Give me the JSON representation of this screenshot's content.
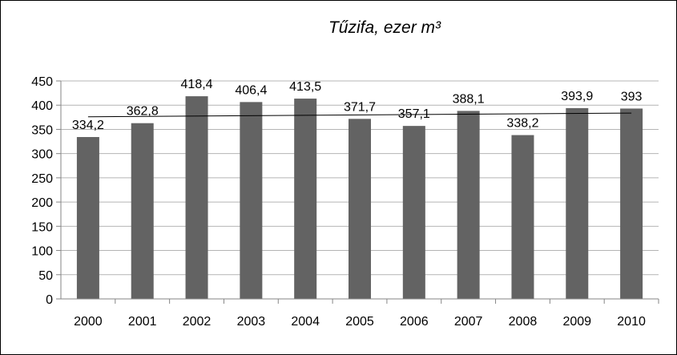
{
  "chart_data": {
    "type": "bar",
    "title": "Tűzifa, ezer m³",
    "xlabel": "",
    "ylabel": "",
    "categories": [
      "2000",
      "2001",
      "2002",
      "2003",
      "2004",
      "2005",
      "2006",
      "2007",
      "2008",
      "2009",
      "2010"
    ],
    "values": [
      334.2,
      362.8,
      418.4,
      406.4,
      413.5,
      371.7,
      357.1,
      388.1,
      338.2,
      393.9,
      393
    ],
    "value_labels": [
      "334,2",
      "362,8",
      "418,4",
      "406,4",
      "413,5",
      "371,7",
      "357,1",
      "388,1",
      "338,2",
      "393,9",
      "393"
    ],
    "ylim": [
      0,
      450
    ],
    "yticks": [
      "0",
      "50",
      "100",
      "150",
      "200",
      "250",
      "300",
      "350",
      "400",
      "450"
    ],
    "grid": true,
    "legend": "none",
    "trendline": "linear",
    "bar_color": "#636363",
    "grid_color": "#b4b4b4",
    "trendline_color": "#000000"
  }
}
